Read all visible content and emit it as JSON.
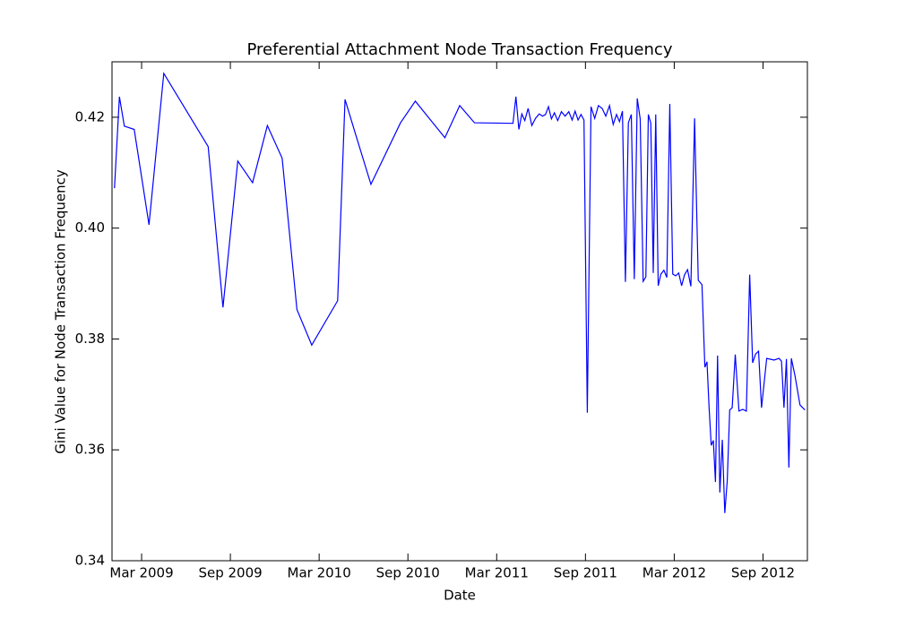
{
  "chart_data": {
    "type": "line",
    "title": "Preferential Attachment Node Transaction Frequency",
    "x_label": "Date",
    "y_label": "Gini Value for Node Transaction Frequency",
    "color": "#0000ff",
    "xlim": [
      "2009-01",
      "2012-12"
    ],
    "xticks": [
      {
        "value": "2009-03",
        "label": "Mar 2009"
      },
      {
        "value": "2009-09",
        "label": "Sep 2009"
      },
      {
        "value": "2010-03",
        "label": "Mar 2010"
      },
      {
        "value": "2010-09",
        "label": "Sep 2010"
      },
      {
        "value": "2011-03",
        "label": "Mar 2011"
      },
      {
        "value": "2011-09",
        "label": "Sep 2011"
      },
      {
        "value": "2012-03",
        "label": "Mar 2012"
      },
      {
        "value": "2012-09",
        "label": "Sep 2012"
      }
    ],
    "ylim": [
      0.34,
      0.43
    ],
    "yticks": [
      0.34,
      0.36,
      0.38,
      {
        "value": 0.4,
        "label": "0.40"
      },
      0.42
    ],
    "x": [
      "2009-01",
      "2009-01",
      "2009-01",
      "2009-02",
      "2009-03",
      "2009-04",
      "2009-07",
      "2009-08",
      "2009-09",
      "2009-10",
      "2009-11",
      "2009-12",
      "2010-01",
      "2010-02",
      "2010-04",
      "2010-04",
      "2010-05",
      "2010-06",
      "2010-08",
      "2010-09",
      "2010-11",
      "2010-12",
      "2011-01",
      "2011-04",
      "2011-04",
      "2011-04",
      "2011-04",
      "2011-04",
      "2011-05",
      "2011-05",
      "2011-05",
      "2011-05",
      "2011-06",
      "2011-06",
      "2011-06",
      "2011-06",
      "2011-06",
      "2011-07",
      "2011-07",
      "2011-07",
      "2011-07",
      "2011-08",
      "2011-08",
      "2011-08",
      "2011-08",
      "2011-08",
      "2011-09",
      "2011-09",
      "2011-09",
      "2011-09",
      "2011-10",
      "2011-10",
      "2011-10",
      "2011-10",
      "2011-11",
      "2011-11",
      "2011-11",
      "2011-11",
      "2011-11",
      "2011-12",
      "2011-12",
      "2011-12",
      "2011-12",
      "2011-12",
      "2012-01",
      "2012-01",
      "2012-01",
      "2012-01",
      "2012-01",
      "2012-01",
      "2012-02",
      "2012-02",
      "2012-02",
      "2012-02",
      "2012-02",
      "2012-03",
      "2012-03",
      "2012-03",
      "2012-03",
      "2012-03",
      "2012-04",
      "2012-04",
      "2012-04",
      "2012-04",
      "2012-05",
      "2012-05",
      "2012-05",
      "2012-05",
      "2012-05",
      "2012-05",
      "2012-05",
      "2012-06",
      "2012-06",
      "2012-06",
      "2012-06",
      "2012-06",
      "2012-06",
      "2012-07",
      "2012-07",
      "2012-07",
      "2012-07",
      "2012-08",
      "2012-08",
      "2012-08",
      "2012-08",
      "2012-08",
      "2012-09",
      "2012-09",
      "2012-10",
      "2012-10",
      "2012-10",
      "2012-10",
      "2012-10",
      "2012-10",
      "2012-11",
      "2012-11",
      "2012-11"
    ],
    "values": [
      0.4072,
      0.4237,
      0.4184,
      0.4178,
      0.4006,
      0.4279,
      0.4147,
      0.3857,
      0.4121,
      0.4082,
      0.4185,
      0.4126,
      0.3853,
      0.3789,
      0.3869,
      0.4232,
      0.4166,
      0.4079,
      0.419,
      0.4229,
      0.4163,
      0.4221,
      0.419,
      0.4189,
      0.4237,
      0.4178,
      0.4206,
      0.4194,
      0.4216,
      0.4185,
      0.4198,
      0.4206,
      0.4202,
      0.4205,
      0.4219,
      0.4197,
      0.4208,
      0.4194,
      0.421,
      0.4202,
      0.421,
      0.4195,
      0.4211,
      0.4195,
      0.4205,
      0.4195,
      0.3667,
      0.4219,
      0.4198,
      0.4221,
      0.4216,
      0.4202,
      0.4221,
      0.4187,
      0.4205,
      0.4192,
      0.4211,
      0.3903,
      0.419,
      0.4205,
      0.3908,
      0.4234,
      0.4197,
      0.3904,
      0.3912,
      0.4205,
      0.4189,
      0.3919,
      0.4205,
      0.3896,
      0.3917,
      0.3924,
      0.3911,
      0.4224,
      0.3917,
      0.3914,
      0.3919,
      0.3896,
      0.3916,
      0.3925,
      0.3895,
      0.4198,
      0.3906,
      0.3898,
      0.3749,
      0.3759,
      0.3676,
      0.3608,
      0.3617,
      0.3542,
      0.377,
      0.3523,
      0.3618,
      0.3486,
      0.3544,
      0.3672,
      0.3676,
      0.3772,
      0.367,
      0.3673,
      0.367,
      0.3916,
      0.3757,
      0.3773,
      0.3778,
      0.3676,
      0.3765,
      0.3762,
      0.3765,
      0.376,
      0.3676,
      0.3764,
      0.3568,
      0.3765,
      0.3733,
      0.3681,
      0.3672
    ]
  }
}
